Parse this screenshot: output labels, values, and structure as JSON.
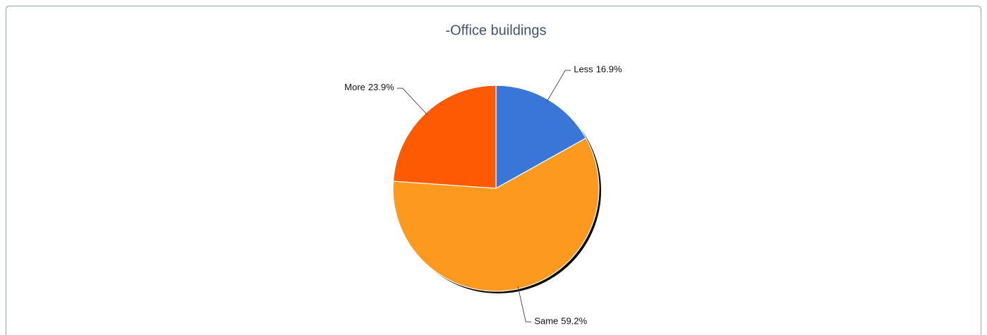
{
  "chart_data": {
    "type": "pie",
    "title": "-Office buildings",
    "categories": [
      "Less",
      "Same",
      "More"
    ],
    "values": [
      16.9,
      59.2,
      23.9
    ],
    "value_labels": [
      "16.9%",
      "59.2%",
      "23.9%"
    ],
    "colors": [
      "#3a76d8",
      "#fd991e",
      "#fe5903"
    ]
  }
}
